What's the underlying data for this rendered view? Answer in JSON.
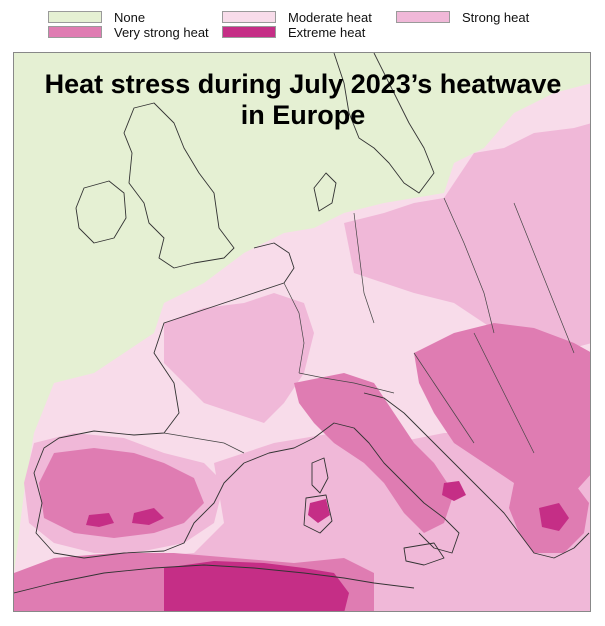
{
  "legend": {
    "items": [
      {
        "label": "None",
        "color": "#e5f0d3"
      },
      {
        "label": "Moderate heat",
        "color": "#f8dcea"
      },
      {
        "label": "Strong heat",
        "color": "#f0b8d8"
      },
      {
        "label": "Very strong heat",
        "color": "#df7cb2"
      },
      {
        "label": "Extreme heat",
        "color": "#c52e86"
      }
    ]
  },
  "map": {
    "title_line1": "Heat stress during July 2023’s heatwave",
    "title_line2": "in Europe",
    "colors": {
      "none": "#e5f0d3",
      "moderate": "#f8dcea",
      "strong": "#f0b8d8",
      "very_strong": "#df7cb2",
      "extreme": "#c52e86",
      "border": "#333333"
    }
  }
}
